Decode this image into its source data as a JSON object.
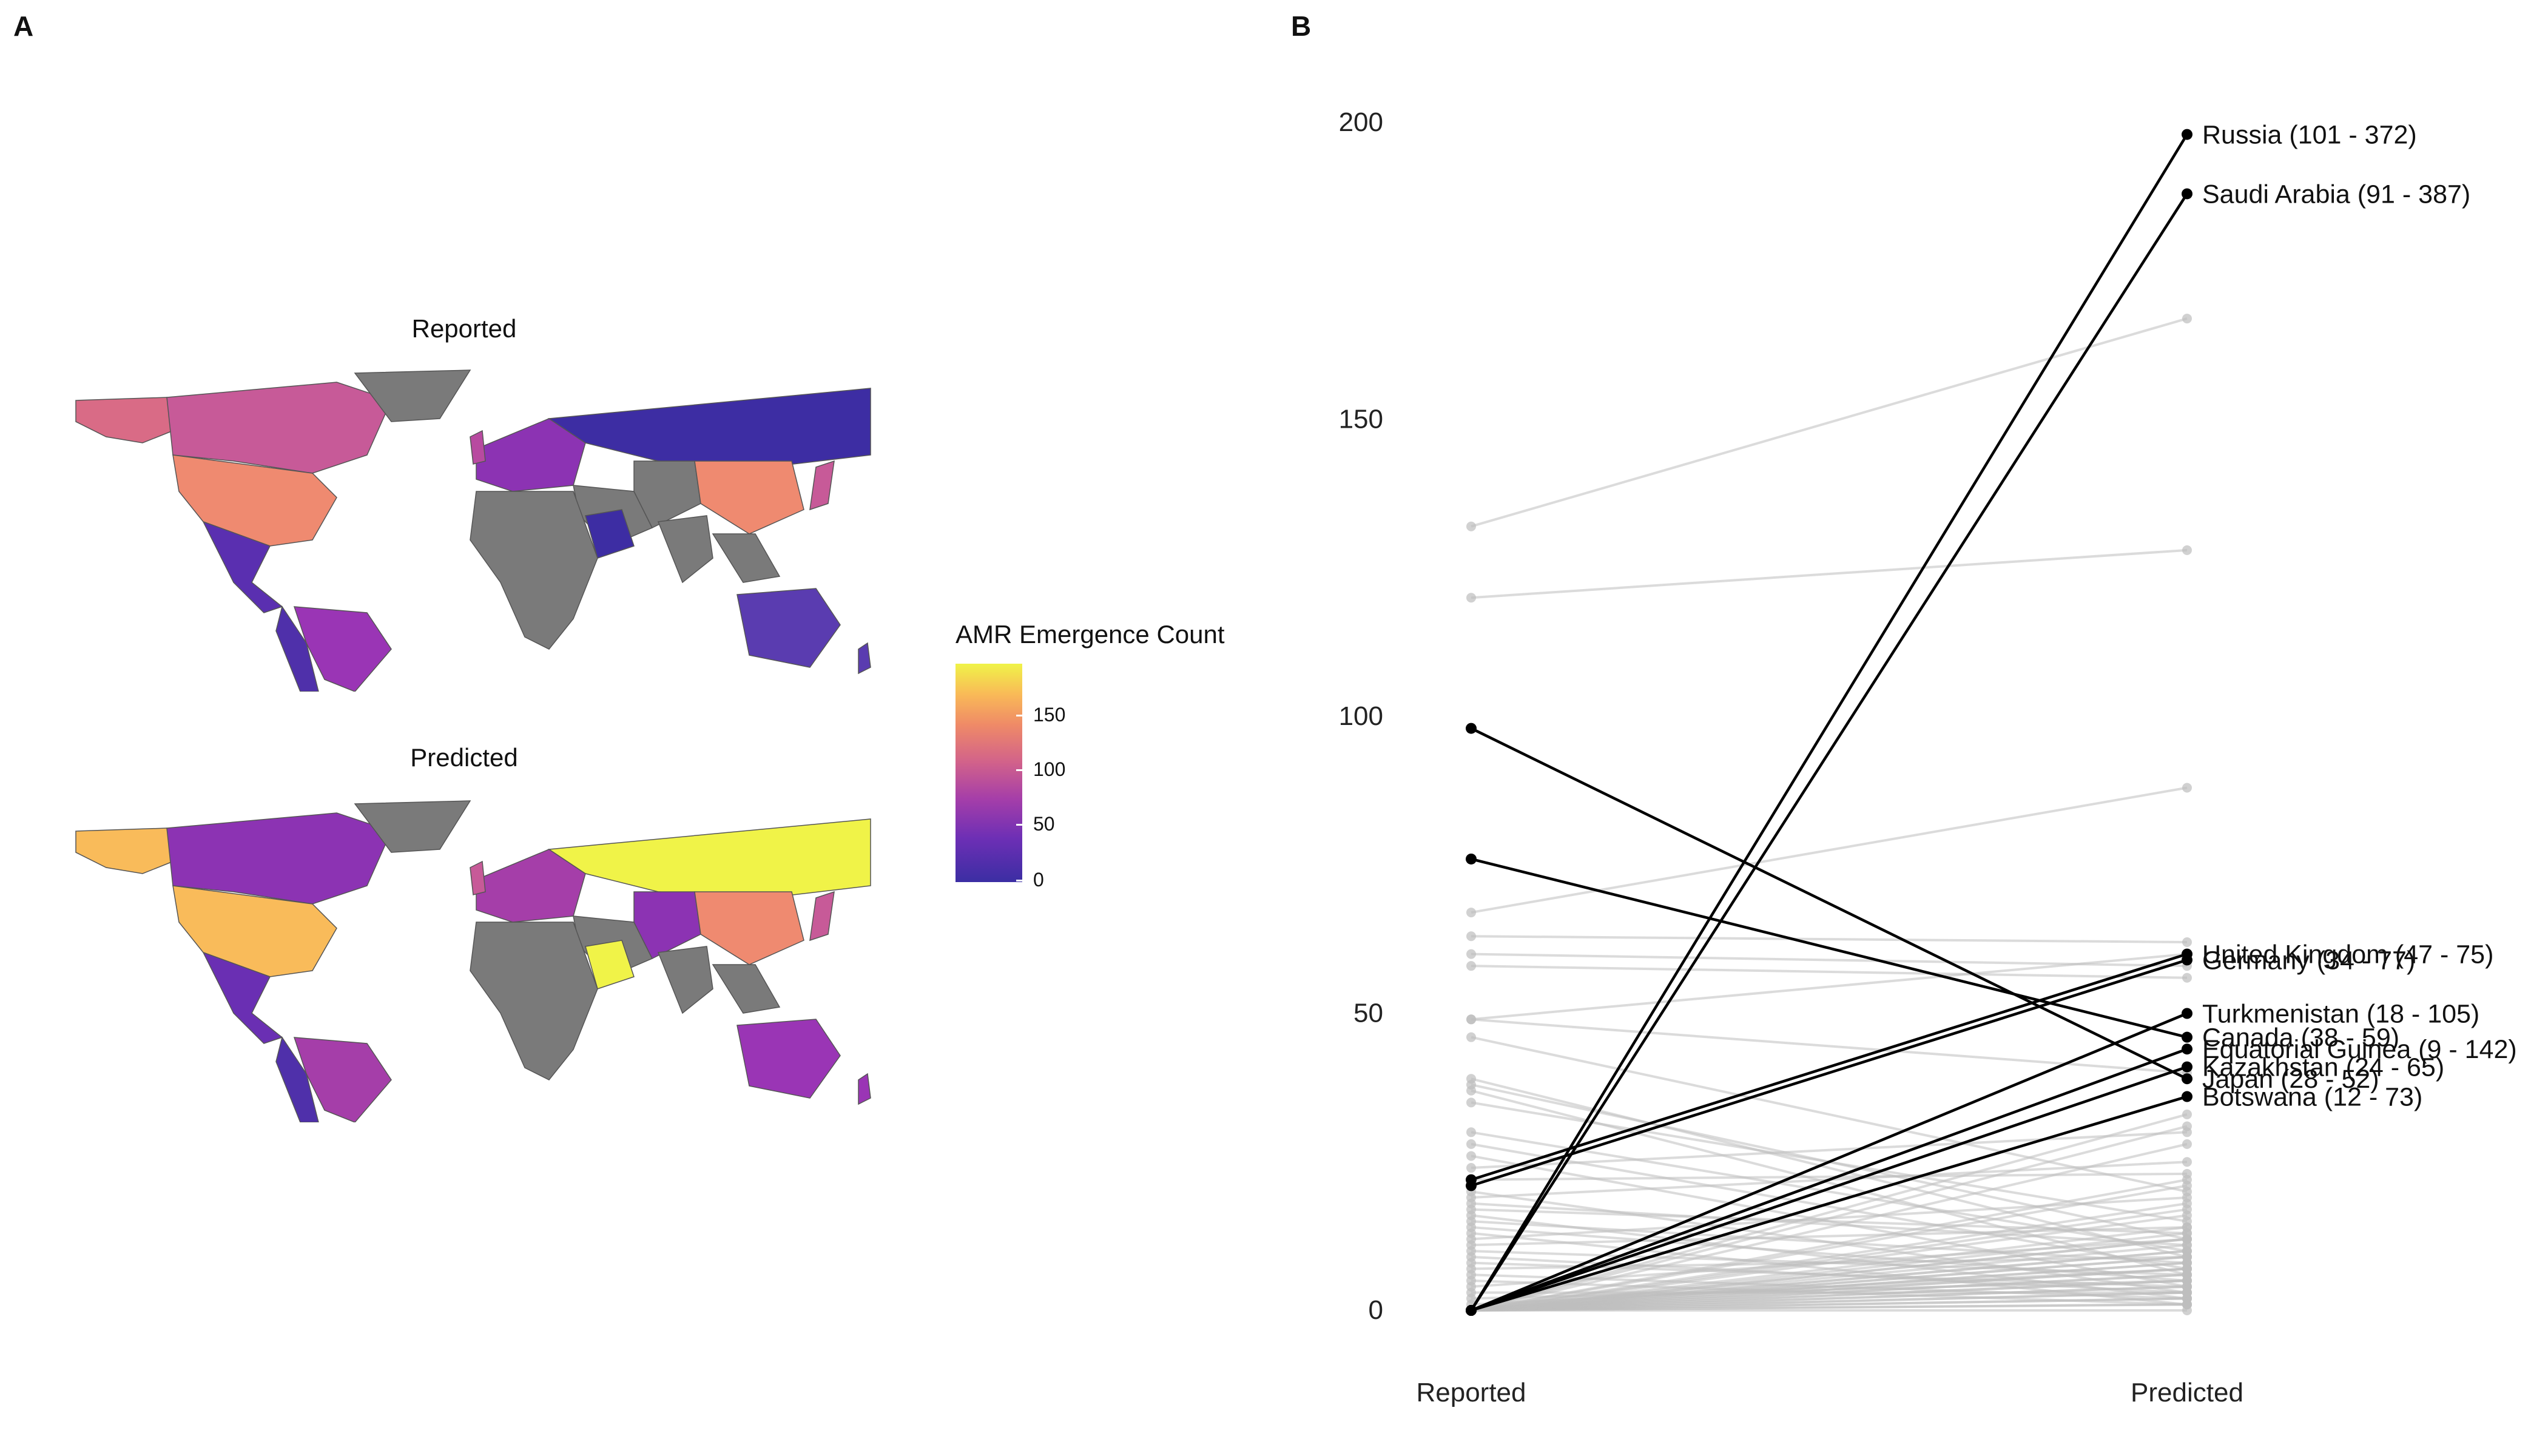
{
  "panels": {
    "a_label": "A",
    "b_label": "B"
  },
  "maps": {
    "reported_title": "Reported",
    "predicted_title": "Predicted",
    "no_data_color": "#7a7a7a",
    "legend": {
      "title": "AMR Emergence Count",
      "ticks": [
        "150",
        "100",
        "50",
        "0"
      ],
      "colormap": "plasma-like (dark blue → purple → pink → orange → yellow)",
      "range": [
        0,
        200
      ]
    }
  },
  "chart_data": {
    "type": "line",
    "subtype": "slope",
    "categories": [
      "Reported",
      "Predicted"
    ],
    "ylim": [
      0,
      200
    ],
    "yticks": [
      0,
      50,
      100,
      150,
      200
    ],
    "title": "",
    "xlabel": "",
    "ylabel": "",
    "highlight_color": "#000000",
    "background_color": "#bdbdbd",
    "highlighted": [
      {
        "label": "Russia (101 - 372)",
        "reported": 0,
        "predicted": 198
      },
      {
        "label": "Saudi Arabia (91 - 387)",
        "reported": 0,
        "predicted": 188
      },
      {
        "label": "United Kingdom (47 - 75)",
        "reported": 22,
        "predicted": 60
      },
      {
        "label": "Germany (34 - 77)",
        "reported": 21,
        "predicted": 59
      },
      {
        "label": "Turkmenistan (18 - 105)",
        "reported": 0,
        "predicted": 50
      },
      {
        "label": "Canada (38 - 59)",
        "reported": 76,
        "predicted": 46
      },
      {
        "label": "Equatorial Guinea (9 - 142)",
        "reported": 0,
        "predicted": 44
      },
      {
        "label": "Kazakhstan (24 - 65)",
        "reported": 0,
        "predicted": 41
      },
      {
        "label": "Japan (28 - 52)",
        "reported": 98,
        "predicted": 39
      },
      {
        "label": "Botswana (12 - 73)",
        "reported": 0,
        "predicted": 36
      }
    ],
    "background": [
      [
        132,
        167
      ],
      [
        120,
        128
      ],
      [
        67,
        88
      ],
      [
        63,
        62
      ],
      [
        60,
        58
      ],
      [
        58,
        56
      ],
      [
        49,
        60
      ],
      [
        49,
        40
      ],
      [
        46,
        20
      ],
      [
        39,
        9
      ],
      [
        38,
        12
      ],
      [
        37,
        6
      ],
      [
        35,
        15
      ],
      [
        30,
        10
      ],
      [
        28,
        7
      ],
      [
        26,
        4
      ],
      [
        24,
        30
      ],
      [
        22,
        23
      ],
      [
        20,
        3
      ],
      [
        19,
        25
      ],
      [
        18,
        11
      ],
      [
        17,
        13
      ],
      [
        16,
        2
      ],
      [
        15,
        8
      ],
      [
        14,
        5
      ],
      [
        13,
        1
      ],
      [
        12,
        19
      ],
      [
        11,
        14
      ],
      [
        10,
        6
      ],
      [
        9,
        3
      ],
      [
        8,
        4
      ],
      [
        7,
        9
      ],
      [
        6,
        2
      ],
      [
        5,
        1
      ],
      [
        4,
        12
      ],
      [
        3,
        3
      ],
      [
        2,
        5
      ],
      [
        1,
        7
      ],
      [
        0,
        33
      ],
      [
        0,
        31
      ],
      [
        0,
        28
      ],
      [
        0,
        22
      ],
      [
        0,
        21
      ],
      [
        0,
        18
      ],
      [
        0,
        17
      ],
      [
        0,
        16
      ],
      [
        0,
        14
      ],
      [
        0,
        13
      ],
      [
        0,
        12
      ],
      [
        0,
        11
      ],
      [
        0,
        10
      ],
      [
        0,
        9
      ],
      [
        0,
        8
      ],
      [
        0,
        7
      ],
      [
        0,
        6
      ],
      [
        0,
        5
      ],
      [
        0,
        4
      ],
      [
        0,
        3
      ],
      [
        0,
        2
      ],
      [
        0,
        1
      ],
      [
        0,
        0
      ],
      [
        0,
        10
      ],
      [
        0,
        8
      ],
      [
        0,
        6
      ],
      [
        0,
        4
      ],
      [
        0,
        2
      ],
      [
        0,
        1
      ],
      [
        0,
        12
      ],
      [
        0,
        9
      ],
      [
        0,
        7
      ],
      [
        0,
        5
      ],
      [
        0,
        3
      ]
    ]
  }
}
